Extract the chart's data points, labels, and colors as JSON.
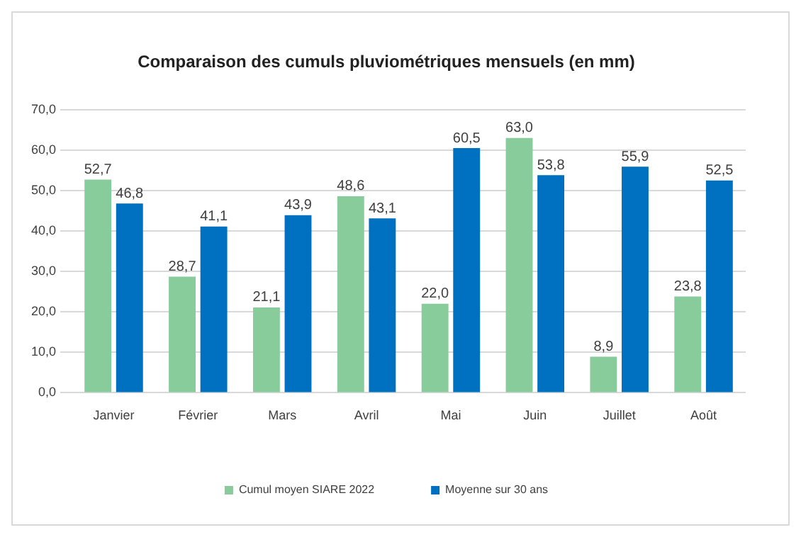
{
  "chart_data": {
    "type": "bar",
    "title": "Comparaison des cumuls pluviométriques mensuels (en mm)",
    "categories": [
      "Janvier",
      "Février",
      "Mars",
      "Avril",
      "Mai",
      "Juin",
      "Juillet",
      "Août"
    ],
    "series": [
      {
        "name": "Cumul moyen SIARE 2022",
        "color": "#88cc9c",
        "values": [
          52.7,
          28.7,
          21.1,
          48.6,
          22.0,
          63.0,
          8.9,
          23.8
        ],
        "value_labels": [
          "52,7",
          "28,7",
          "21,1",
          "48,6",
          "22,0",
          "63,0",
          "8,9",
          "23,8"
        ]
      },
      {
        "name": "Moyenne sur 30 ans",
        "color": "#0070c0",
        "values": [
          46.8,
          41.1,
          43.9,
          43.1,
          60.5,
          53.8,
          55.9,
          52.5
        ],
        "value_labels": [
          "46,8",
          "41,1",
          "43,9",
          "43,1",
          "60,5",
          "53,8",
          "55,9",
          "52,5"
        ]
      }
    ],
    "ylim": [
      0,
      70
    ],
    "yticks": [
      {
        "value": 0,
        "label": "0,0"
      },
      {
        "value": 10,
        "label": "10,0"
      },
      {
        "value": 20,
        "label": "20,0"
      },
      {
        "value": 30,
        "label": "30,0"
      },
      {
        "value": 40,
        "label": "40,0"
      },
      {
        "value": 50,
        "label": "50,0"
      },
      {
        "value": 60,
        "label": "60,0"
      },
      {
        "value": 70,
        "label": "70,0"
      }
    ],
    "grid": "y",
    "legend": "bottom"
  }
}
